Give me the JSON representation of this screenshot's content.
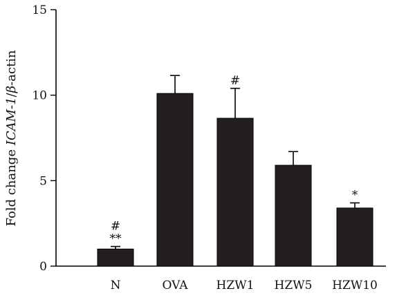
{
  "chart_data": {
    "type": "bar",
    "title": "",
    "xlabel": "",
    "ylabel_prefix": "Fold change ",
    "ylabel_gene": "ICAM-1",
    "ylabel_sep": "/",
    "ylabel_beta": "β",
    "ylabel_suffix": "-actin",
    "ylim": [
      0,
      15
    ],
    "yticks": [
      0,
      5,
      10,
      15
    ],
    "categories": [
      "N",
      "OVA",
      "HZW1",
      "HZW5",
      "HZW10"
    ],
    "values": [
      1.0,
      10.1,
      8.65,
      5.9,
      3.4
    ],
    "errors": [
      0.15,
      1.05,
      1.75,
      0.8,
      0.3
    ],
    "annotations": [
      [
        "#",
        "**"
      ],
      [],
      [
        "#"
      ],
      [],
      [
        "*"
      ]
    ],
    "bar_color": "#231f20",
    "grid": false,
    "legend": "none"
  }
}
